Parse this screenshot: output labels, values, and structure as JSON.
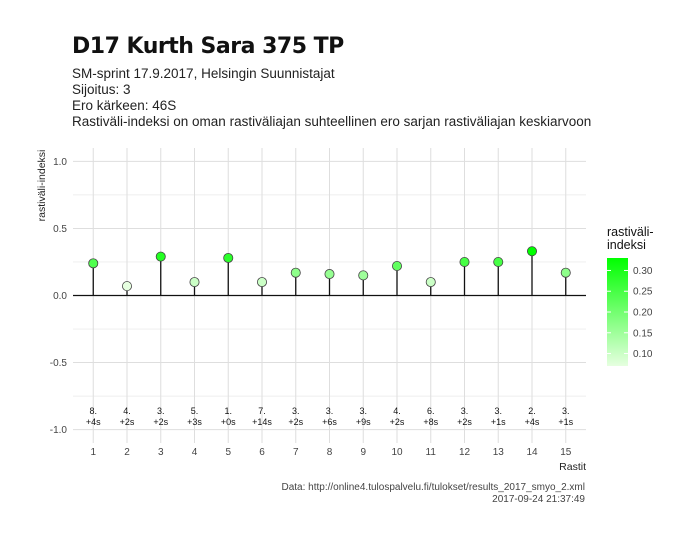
{
  "chart_data": {
    "type": "lollipop",
    "title": "D17 Kurth Sara 375 TP",
    "subtitle_lines": [
      "SM-sprint 17.9.2017, Helsingin Suunnistajat",
      "Sijoitus: 3",
      "Ero kärkeen: 46S",
      "Rastiväli-indeksi on oman rastiväliajan suhteellinen ero sarjan rastiväliajan keskiarvoon"
    ],
    "xlabel": "Rastit",
    "ylabel": "rastiväli-indeksi",
    "ylim": [
      -1.1,
      1.1
    ],
    "y_ticks": [
      -1.0,
      -0.5,
      0.0,
      0.5,
      1.0
    ],
    "y_tick_labels": [
      "-1.0",
      "-0.5",
      "0.0",
      "0.5",
      "1.0"
    ],
    "x": [
      1,
      2,
      3,
      4,
      5,
      6,
      7,
      8,
      9,
      10,
      11,
      12,
      13,
      14,
      15
    ],
    "x_tick_labels": [
      "1",
      "2",
      "3",
      "4",
      "5",
      "6",
      "7",
      "8",
      "9",
      "10",
      "11",
      "12",
      "13",
      "14",
      "15"
    ],
    "values": [
      0.24,
      0.07,
      0.29,
      0.1,
      0.28,
      0.1,
      0.17,
      0.16,
      0.15,
      0.22,
      0.1,
      0.25,
      0.25,
      0.33,
      0.17
    ],
    "rank_labels": [
      "8.",
      "4.",
      "3.",
      "5.",
      "1.",
      "7.",
      "3.",
      "3.",
      "3.",
      "4.",
      "6.",
      "3.",
      "3.",
      "2.",
      "3."
    ],
    "diff_labels": [
      "+4s",
      "+2s",
      "+2s",
      "+3s",
      "+0s",
      "+14s",
      "+2s",
      "+6s",
      "+9s",
      "+2s",
      "+8s",
      "+2s",
      "+1s",
      "+4s",
      "+1s"
    ],
    "label_y": -0.9,
    "grid": true,
    "legend": {
      "title_lines": [
        "rastiväli-",
        "indeksi"
      ],
      "position": "right",
      "type": "colorbar",
      "range": [
        0.07,
        0.33
      ],
      "ticks": [
        0.1,
        0.15,
        0.2,
        0.25,
        0.3
      ],
      "tick_labels": [
        "0.10",
        "0.15",
        "0.20",
        "0.25",
        "0.30"
      ],
      "color_low": "#e6ffe0",
      "color_high": "#00ff00"
    },
    "colors": {
      "stem": "#111111",
      "point_outline": "#444444",
      "zero_line": "#111111",
      "grid": "#dedede"
    }
  },
  "caption": {
    "source": "Data: http://online4.tulospalvelu.fi/tulokset/results_2017_smyo_2.xml",
    "timestamp": "2017-09-24 21:37:49"
  }
}
